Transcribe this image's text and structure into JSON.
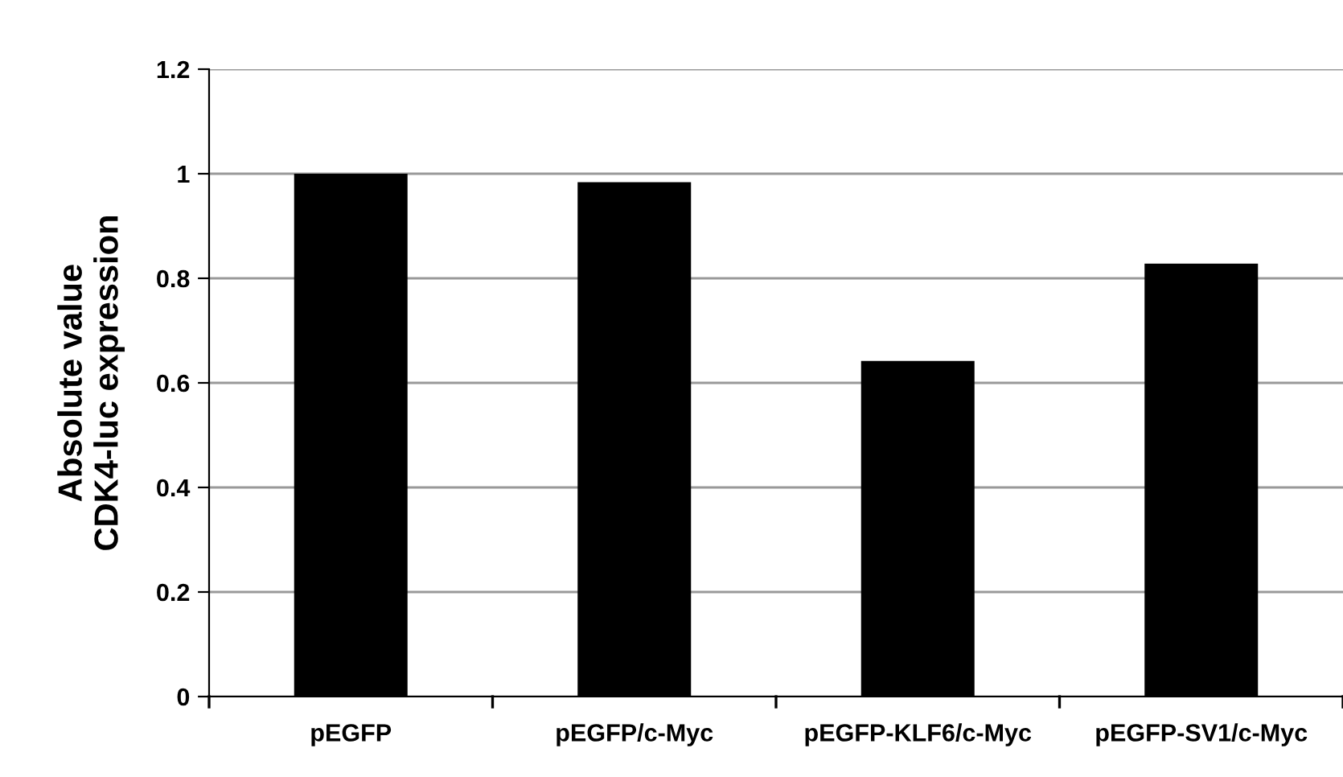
{
  "chart_data": {
    "type": "bar",
    "ylabel": "Absolute value\nCDK4-luc expression",
    "categories": [
      "pEGFP",
      "pEGFP/c-Myc",
      "pEGFP-KLF6/c-Myc",
      "pEGFP-SV1/c-Myc"
    ],
    "values": [
      1.0,
      0.984,
      0.642,
      0.828
    ],
    "color": "#000000",
    "ylim": [
      0,
      1.2
    ],
    "yticks": [
      0,
      0.2,
      0.4,
      0.6,
      0.8,
      1,
      1.2
    ],
    "grid": "y",
    "legend": false
  }
}
